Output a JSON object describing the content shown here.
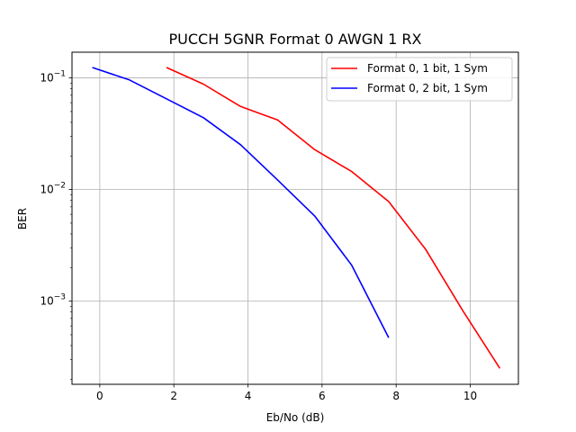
{
  "chart_data": {
    "type": "line",
    "title": "PUCCH 5GNR Format 0 AWGN 1 RX",
    "xlabel": "Eb/No (dB)",
    "ylabel": "BER",
    "xscale": "linear",
    "yscale": "log",
    "xlim": [
      -0.75,
      11.3
    ],
    "ylim": [
      0.00018,
      0.17
    ],
    "grid": true,
    "legend_position": "top-right",
    "x_ticks": [
      {
        "value": 0,
        "label": "0"
      },
      {
        "value": 2,
        "label": "2"
      },
      {
        "value": 4,
        "label": "4"
      },
      {
        "value": 6,
        "label": "6"
      },
      {
        "value": 8,
        "label": "8"
      },
      {
        "value": 10,
        "label": "10"
      }
    ],
    "y_ticks": [
      {
        "value": 0.1,
        "base": "10",
        "exp": "−1"
      },
      {
        "value": 0.01,
        "base": "10",
        "exp": "−2"
      },
      {
        "value": 0.001,
        "base": "10",
        "exp": "−3"
      }
    ],
    "series": [
      {
        "name": "Format 0, 1 bit, 1 Sym",
        "color": "#ff0000",
        "x": [
          1.8,
          2.8,
          3.8,
          4.8,
          5.8,
          6.8,
          7.8,
          8.8,
          9.8,
          10.8
        ],
        "y": [
          0.124,
          0.088,
          0.0555,
          0.042,
          0.0228,
          0.0145,
          0.0078,
          0.0029,
          0.00082,
          0.00025
        ]
      },
      {
        "name": "Format 0, 2 bit, 1 Sym",
        "color": "#0000ff",
        "x": [
          -0.2,
          0.8,
          1.8,
          2.8,
          3.8,
          4.8,
          5.8,
          6.8,
          7.8
        ],
        "y": [
          0.124,
          0.096,
          0.065,
          0.044,
          0.0252,
          0.0122,
          0.0058,
          0.0021,
          0.00047
        ]
      }
    ]
  }
}
